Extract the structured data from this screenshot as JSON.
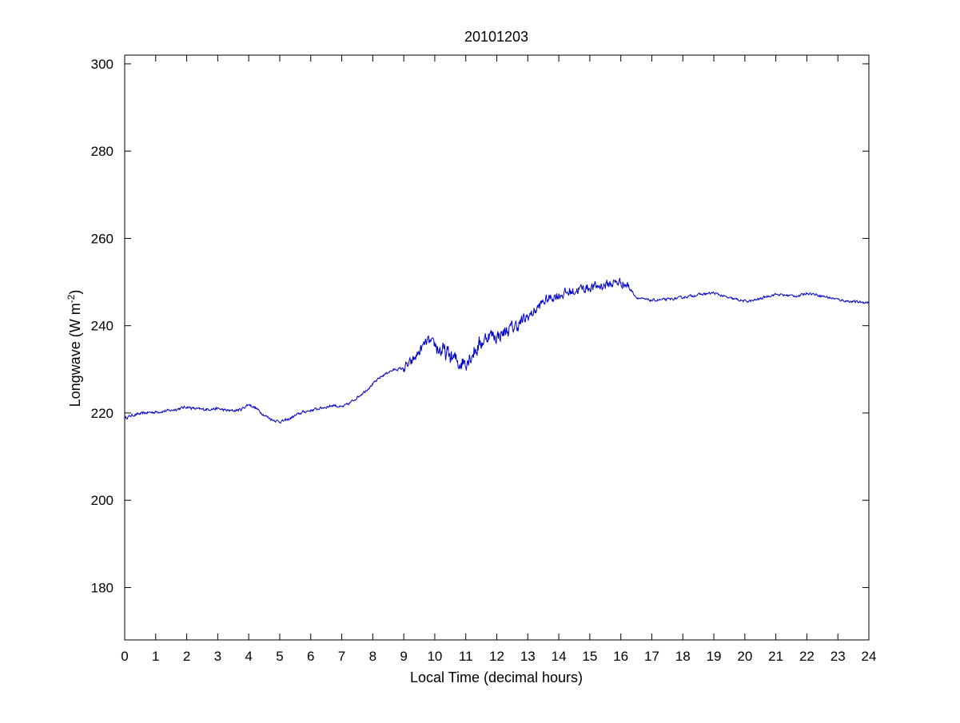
{
  "chart_data": {
    "type": "line",
    "title": "20101203",
    "xlabel": "Local Time (decimal hours)",
    "ylabel": {
      "base": "Longwave (W m",
      "superscript": "-2",
      "suffix": ")"
    },
    "xlim": [
      0,
      24
    ],
    "ylim": [
      168,
      302
    ],
    "xticks": [
      0,
      1,
      2,
      3,
      4,
      5,
      6,
      7,
      8,
      9,
      10,
      11,
      12,
      13,
      14,
      15,
      16,
      17,
      18,
      19,
      20,
      21,
      22,
      23,
      24
    ],
    "yticks": [
      180,
      200,
      220,
      240,
      260,
      280,
      300
    ],
    "xtick_labels": [
      "0",
      "1",
      "2",
      "3",
      "4",
      "5",
      "6",
      "7",
      "8",
      "9",
      "10",
      "11",
      "12",
      "13",
      "14",
      "15",
      "16",
      "17",
      "18",
      "19",
      "20",
      "21",
      "22",
      "23",
      "24"
    ],
    "ytick_labels": [
      "180",
      "200",
      "220",
      "240",
      "260",
      "280",
      "300"
    ],
    "grid": false,
    "box": true,
    "series": [
      {
        "color": "#0000cc",
        "x": [
          0.0,
          0.25,
          0.5,
          0.75,
          1.0,
          1.25,
          1.5,
          1.75,
          2.0,
          2.25,
          2.5,
          2.75,
          3.0,
          3.25,
          3.5,
          3.75,
          4.0,
          4.25,
          4.5,
          4.75,
          5.0,
          5.25,
          5.5,
          5.75,
          6.0,
          6.25,
          6.5,
          6.75,
          7.0,
          7.25,
          7.5,
          7.75,
          8.0,
          8.25,
          8.5,
          8.75,
          9.0,
          9.25,
          9.5,
          9.75,
          10.0,
          10.25,
          10.5,
          10.75,
          11.0,
          11.25,
          11.5,
          11.75,
          12.0,
          12.25,
          12.5,
          12.75,
          13.0,
          13.25,
          13.5,
          13.75,
          14.0,
          14.25,
          14.5,
          14.75,
          15.0,
          15.25,
          15.5,
          15.75,
          16.0,
          16.25,
          16.5,
          16.75,
          17.0,
          17.25,
          17.5,
          17.75,
          18.0,
          18.25,
          18.5,
          18.75,
          19.0,
          19.25,
          19.5,
          19.75,
          20.0,
          20.25,
          20.5,
          20.75,
          21.0,
          21.25,
          21.5,
          21.75,
          22.0,
          22.25,
          22.5,
          22.75,
          23.0,
          23.25,
          23.5,
          23.75,
          24.0
        ],
        "y": [
          218.8,
          219.5,
          219.8,
          220.1,
          220.2,
          220.4,
          220.6,
          221.0,
          221.4,
          221.0,
          220.8,
          220.9,
          221.0,
          220.6,
          220.5,
          220.8,
          222.0,
          221.0,
          219.5,
          218.5,
          218.0,
          218.4,
          219.4,
          220.2,
          220.6,
          221.0,
          221.4,
          221.8,
          221.3,
          222.2,
          223.6,
          225.0,
          226.6,
          228.2,
          229.4,
          230.0,
          230.2,
          231.5,
          234.0,
          236.5,
          235.5,
          234.0,
          233.0,
          231.5,
          232.0,
          234.0,
          236.0,
          238.0,
          237.5,
          238.5,
          239.5,
          240.5,
          242.0,
          243.5,
          245.5,
          246.5,
          247.0,
          247.5,
          248.0,
          248.5,
          248.8,
          249.0,
          249.3,
          249.8,
          250.0,
          249.0,
          246.5,
          246.0,
          245.8,
          245.9,
          246.0,
          246.2,
          246.5,
          246.8,
          247.1,
          247.3,
          247.5,
          246.9,
          246.3,
          246.0,
          245.6,
          245.7,
          246.2,
          246.8,
          247.2,
          247.0,
          246.9,
          246.8,
          247.5,
          247.2,
          246.8,
          246.4,
          246.0,
          245.7,
          245.5,
          245.4,
          245.3
        ]
      }
    ]
  }
}
